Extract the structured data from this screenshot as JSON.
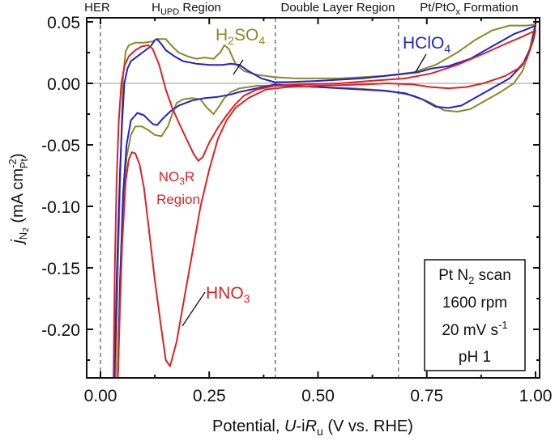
{
  "chart_data": {
    "type": "line",
    "title": "",
    "xlabel": "Potential, U-iR_u (V vs. RHE)",
    "xlabel_parts": {
      "prefix": "Potential, ",
      "italic_u": "U",
      "dash_i": "-i",
      "italic_r": "R",
      "sub": "u",
      "suffix": " (V vs. RHE)"
    },
    "ylabel": "j_N2 (mA cm_Pt^-2)",
    "ylabel_parts": {
      "j": "j",
      "sub_n": "N",
      "sub_2": "2",
      "unit_open": " (mA cm",
      "sup": "-2",
      "sub_pt": "Pt",
      "unit_close": ")"
    },
    "xlim": [
      -0.03,
      1.01
    ],
    "ylim": [
      -0.24,
      0.053
    ],
    "x_ticks": [
      0.0,
      0.25,
      0.5,
      0.75,
      1.0
    ],
    "x_tick_labels": [
      "0.00",
      "0.25",
      "0.50",
      "0.75",
      "1.00"
    ],
    "y_ticks": [
      0.05,
      0.0,
      -0.05,
      -0.1,
      -0.15,
      -0.2
    ],
    "y_tick_labels": [
      "0.05",
      "0.00",
      "-0.05",
      "-0.10",
      "-0.15",
      "-0.20"
    ],
    "zero_line": 0.0,
    "region_dividers": [
      0.0,
      0.402,
      0.685
    ],
    "region_labels": [
      {
        "text": "HER",
        "x": -0.005
      },
      {
        "text": "H",
        "sub": "UPD",
        "suffix": " Region",
        "x": 0.2
      },
      {
        "text": "Double Layer Region",
        "x": 0.545
      },
      {
        "text": "Pt/PtO",
        "sub": "x",
        "suffix": " Formation",
        "x": 0.845
      }
    ],
    "series": [
      {
        "name": "H2SO4",
        "label_main": "H",
        "label_sub1": "2",
        "label_mid": "SO",
        "label_sub2": "4",
        "color": "#8a8a26",
        "points": [
          [
            0.035,
            -0.24
          ],
          [
            0.04,
            -0.15
          ],
          [
            0.045,
            -0.08
          ],
          [
            0.05,
            -0.02
          ],
          [
            0.052,
            0.005
          ],
          [
            0.058,
            0.026
          ],
          [
            0.065,
            0.031
          ],
          [
            0.08,
            0.033
          ],
          [
            0.1,
            0.033
          ],
          [
            0.12,
            0.034
          ],
          [
            0.13,
            0.036
          ],
          [
            0.15,
            0.036
          ],
          [
            0.165,
            0.03
          ],
          [
            0.18,
            0.025
          ],
          [
            0.2,
            0.022
          ],
          [
            0.22,
            0.02
          ],
          [
            0.24,
            0.021
          ],
          [
            0.26,
            0.02
          ],
          [
            0.275,
            0.025
          ],
          [
            0.285,
            0.031
          ],
          [
            0.295,
            0.028
          ],
          [
            0.31,
            0.016
          ],
          [
            0.33,
            0.01
          ],
          [
            0.36,
            0.007
          ],
          [
            0.4,
            0.005
          ],
          [
            0.45,
            0.004
          ],
          [
            0.55,
            0.004
          ],
          [
            0.65,
            0.006
          ],
          [
            0.72,
            0.009
          ],
          [
            0.77,
            0.015
          ],
          [
            0.82,
            0.025
          ],
          [
            0.86,
            0.035
          ],
          [
            0.9,
            0.043
          ],
          [
            0.94,
            0.047
          ],
          [
            0.98,
            0.047
          ],
          [
            1.0,
            0.048
          ],
          [
            0.995,
            0.042
          ],
          [
            0.985,
            0.025
          ],
          [
            0.97,
            0.01
          ],
          [
            0.95,
            0.0
          ],
          [
            0.92,
            -0.007
          ],
          [
            0.88,
            -0.015
          ],
          [
            0.85,
            -0.021
          ],
          [
            0.82,
            -0.023
          ],
          [
            0.79,
            -0.022
          ],
          [
            0.76,
            -0.016
          ],
          [
            0.72,
            -0.01
          ],
          [
            0.66,
            -0.006
          ],
          [
            0.58,
            -0.004
          ],
          [
            0.5,
            -0.003
          ],
          [
            0.42,
            -0.002
          ],
          [
            0.36,
            -0.002
          ],
          [
            0.32,
            -0.004
          ],
          [
            0.3,
            -0.007
          ],
          [
            0.285,
            -0.012
          ],
          [
            0.27,
            -0.02
          ],
          [
            0.26,
            -0.025
          ],
          [
            0.245,
            -0.02
          ],
          [
            0.23,
            -0.013
          ],
          [
            0.21,
            -0.012
          ],
          [
            0.19,
            -0.013
          ],
          [
            0.175,
            -0.016
          ],
          [
            0.165,
            -0.025
          ],
          [
            0.155,
            -0.035
          ],
          [
            0.14,
            -0.043
          ],
          [
            0.125,
            -0.042
          ],
          [
            0.11,
            -0.038
          ],
          [
            0.095,
            -0.035
          ],
          [
            0.08,
            -0.035
          ],
          [
            0.07,
            -0.042
          ],
          [
            0.06,
            -0.06
          ],
          [
            0.052,
            -0.1
          ],
          [
            0.045,
            -0.16
          ],
          [
            0.04,
            -0.24
          ]
        ]
      },
      {
        "name": "HClO4",
        "label_main": "HClO",
        "label_sub1": "4",
        "color": "#2222cc",
        "points": [
          [
            0.032,
            -0.24
          ],
          [
            0.038,
            -0.15
          ],
          [
            0.045,
            -0.07
          ],
          [
            0.05,
            -0.03
          ],
          [
            0.055,
            0.0
          ],
          [
            0.062,
            0.012
          ],
          [
            0.07,
            0.018
          ],
          [
            0.085,
            0.022
          ],
          [
            0.1,
            0.026
          ],
          [
            0.115,
            0.03
          ],
          [
            0.125,
            0.035
          ],
          [
            0.13,
            0.036
          ],
          [
            0.14,
            0.032
          ],
          [
            0.15,
            0.027
          ],
          [
            0.17,
            0.022
          ],
          [
            0.19,
            0.018
          ],
          [
            0.22,
            0.016
          ],
          [
            0.25,
            0.015
          ],
          [
            0.28,
            0.015
          ],
          [
            0.3,
            0.016
          ],
          [
            0.32,
            0.015
          ],
          [
            0.34,
            0.01
          ],
          [
            0.37,
            0.004
          ],
          [
            0.4,
            0.001
          ],
          [
            0.43,
            0.001
          ],
          [
            0.5,
            0.002
          ],
          [
            0.6,
            0.004
          ],
          [
            0.68,
            0.007
          ],
          [
            0.73,
            0.009
          ],
          [
            0.76,
            0.012
          ],
          [
            0.8,
            0.014
          ],
          [
            0.85,
            0.02
          ],
          [
            0.9,
            0.03
          ],
          [
            0.95,
            0.04
          ],
          [
            0.98,
            0.044
          ],
          [
            1.0,
            0.047
          ],
          [
            0.99,
            0.03
          ],
          [
            0.97,
            0.015
          ],
          [
            0.94,
            0.004
          ],
          [
            0.9,
            -0.004
          ],
          [
            0.86,
            -0.012
          ],
          [
            0.83,
            -0.018
          ],
          [
            0.8,
            -0.02
          ],
          [
            0.77,
            -0.019
          ],
          [
            0.74,
            -0.013
          ],
          [
            0.7,
            -0.008
          ],
          [
            0.65,
            -0.006
          ],
          [
            0.55,
            -0.004
          ],
          [
            0.45,
            -0.002
          ],
          [
            0.4,
            -0.001
          ],
          [
            0.36,
            -0.004
          ],
          [
            0.32,
            -0.007
          ],
          [
            0.3,
            -0.009
          ],
          [
            0.27,
            -0.011
          ],
          [
            0.24,
            -0.012
          ],
          [
            0.21,
            -0.014
          ],
          [
            0.18,
            -0.018
          ],
          [
            0.16,
            -0.023
          ],
          [
            0.145,
            -0.028
          ],
          [
            0.13,
            -0.034
          ],
          [
            0.12,
            -0.033
          ],
          [
            0.1,
            -0.026
          ],
          [
            0.085,
            -0.024
          ],
          [
            0.07,
            -0.03
          ],
          [
            0.06,
            -0.05
          ],
          [
            0.052,
            -0.09
          ],
          [
            0.045,
            -0.16
          ],
          [
            0.04,
            -0.24
          ]
        ]
      },
      {
        "name": "HNO3",
        "label_main": "HNO",
        "label_sub1": "3",
        "color": "#dd2222",
        "points": [
          [
            0.03,
            -0.24
          ],
          [
            0.033,
            -0.15
          ],
          [
            0.037,
            -0.08
          ],
          [
            0.042,
            -0.03
          ],
          [
            0.048,
            0.0
          ],
          [
            0.055,
            0.014
          ],
          [
            0.065,
            0.022
          ],
          [
            0.08,
            0.027
          ],
          [
            0.095,
            0.03
          ],
          [
            0.11,
            0.031
          ],
          [
            0.12,
            0.028
          ],
          [
            0.135,
            0.015
          ],
          [
            0.15,
            -0.005
          ],
          [
            0.165,
            -0.02
          ],
          [
            0.18,
            -0.032
          ],
          [
            0.2,
            -0.047
          ],
          [
            0.215,
            -0.058
          ],
          [
            0.225,
            -0.063
          ],
          [
            0.235,
            -0.06
          ],
          [
            0.25,
            -0.048
          ],
          [
            0.27,
            -0.036
          ],
          [
            0.29,
            -0.026
          ],
          [
            0.31,
            -0.017
          ],
          [
            0.33,
            -0.01
          ],
          [
            0.36,
            -0.005
          ],
          [
            0.4,
            -0.002
          ],
          [
            0.45,
            -0.001
          ],
          [
            0.55,
            0.0
          ],
          [
            0.62,
            0.002
          ],
          [
            0.7,
            0.004
          ],
          [
            0.76,
            0.008
          ],
          [
            0.82,
            0.015
          ],
          [
            0.88,
            0.024
          ],
          [
            0.93,
            0.032
          ],
          [
            0.97,
            0.038
          ],
          [
            1.0,
            0.043
          ],
          [
            0.995,
            0.035
          ],
          [
            0.98,
            0.02
          ],
          [
            0.96,
            0.012
          ],
          [
            0.93,
            0.006
          ],
          [
            0.88,
            0.0
          ],
          [
            0.84,
            -0.003
          ],
          [
            0.8,
            -0.004
          ],
          [
            0.76,
            -0.003
          ],
          [
            0.72,
            -0.001
          ],
          [
            0.66,
            0.0
          ],
          [
            0.6,
            -0.001
          ],
          [
            0.5,
            -0.002
          ],
          [
            0.43,
            -0.003
          ],
          [
            0.38,
            -0.005
          ],
          [
            0.34,
            -0.012
          ],
          [
            0.31,
            -0.02
          ],
          [
            0.29,
            -0.03
          ],
          [
            0.27,
            -0.045
          ],
          [
            0.25,
            -0.07
          ],
          [
            0.23,
            -0.1
          ],
          [
            0.21,
            -0.14
          ],
          [
            0.19,
            -0.18
          ],
          [
            0.175,
            -0.21
          ],
          [
            0.16,
            -0.23
          ],
          [
            0.15,
            -0.225
          ],
          [
            0.14,
            -0.2
          ],
          [
            0.125,
            -0.16
          ],
          [
            0.11,
            -0.115
          ],
          [
            0.1,
            -0.085
          ],
          [
            0.09,
            -0.066
          ],
          [
            0.08,
            -0.057
          ],
          [
            0.072,
            -0.056
          ],
          [
            0.065,
            -0.062
          ],
          [
            0.058,
            -0.08
          ],
          [
            0.05,
            -0.13
          ],
          [
            0.045,
            -0.18
          ],
          [
            0.04,
            -0.24
          ]
        ]
      }
    ],
    "annotations": [
      {
        "text": "NO3R Region",
        "line1_main": "NO",
        "line1_sub": "3",
        "line1_suffix": "R",
        "line2": "Region",
        "color": "#dd2222"
      }
    ],
    "legend": "none",
    "info_box": {
      "position": "bottom-right",
      "line1": {
        "prefix": "Pt N",
        "sub": "2",
        "suffix": " scan"
      },
      "line2": "1600 rpm",
      "line3": {
        "prefix": "20 mV s",
        "sup": "-1"
      },
      "line4": "pH 1"
    },
    "grid": false
  }
}
